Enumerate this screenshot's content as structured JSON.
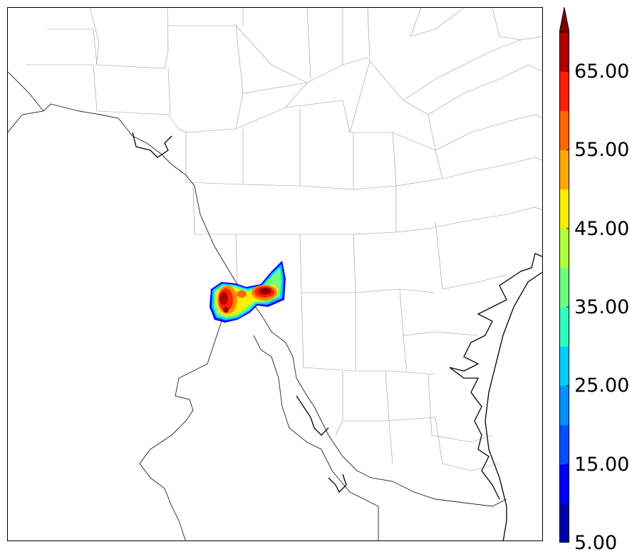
{
  "colorbar": {
    "levels": [
      5,
      10,
      15,
      20,
      25,
      30,
      35,
      40,
      45,
      50,
      55,
      60,
      65,
      70
    ],
    "colors": [
      "#0000a8",
      "#0000ff",
      "#0050ff",
      "#0090ff",
      "#00d0ff",
      "#30ffc0",
      "#70ff80",
      "#b0ff40",
      "#ffee00",
      "#ffaa00",
      "#ff6600",
      "#ff2000",
      "#b00000",
      "#800000"
    ],
    "tick_labels": [
      "5.00",
      "15.00",
      "25.00",
      "35.00",
      "45.00",
      "55.00",
      "65.00"
    ],
    "extend": "max"
  },
  "map": {
    "region": "South Texas / Northeast Mexico",
    "features": [
      "state-county-boundaries",
      "international-border",
      "coastline"
    ],
    "storm_cell": {
      "peak_value": 70,
      "min_value": 5
    }
  }
}
